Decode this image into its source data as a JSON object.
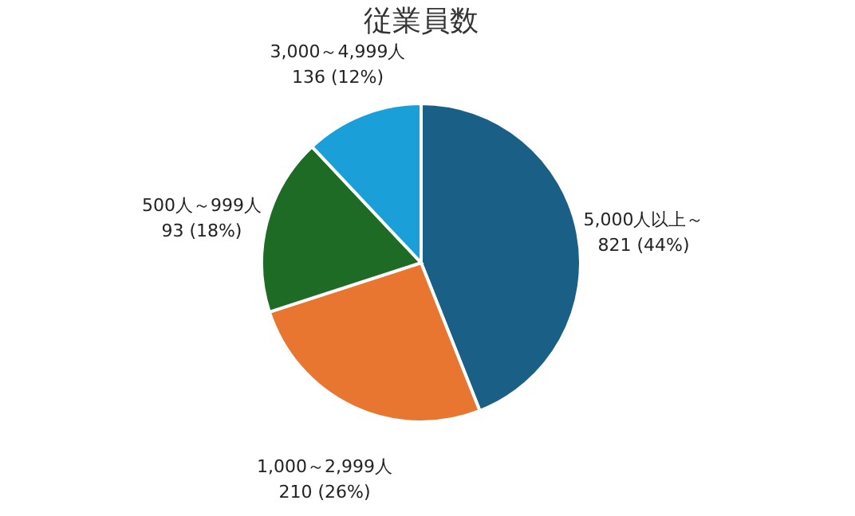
{
  "chart_data": {
    "type": "pie",
    "title": "従業員数",
    "categories": [
      "5,000人以上～",
      "1,000～2,999人",
      "500人～999人",
      "3,000～4,999人"
    ],
    "values": [
      44,
      26,
      18,
      12
    ],
    "value_labels": [
      "821 (44%)",
      "210 (26%)",
      "93 (18%)",
      "136 (12%)"
    ],
    "colors": [
      "#1a5f86",
      "#e87530",
      "#1e6b26",
      "#1a9fd8"
    ],
    "legend": false
  }
}
